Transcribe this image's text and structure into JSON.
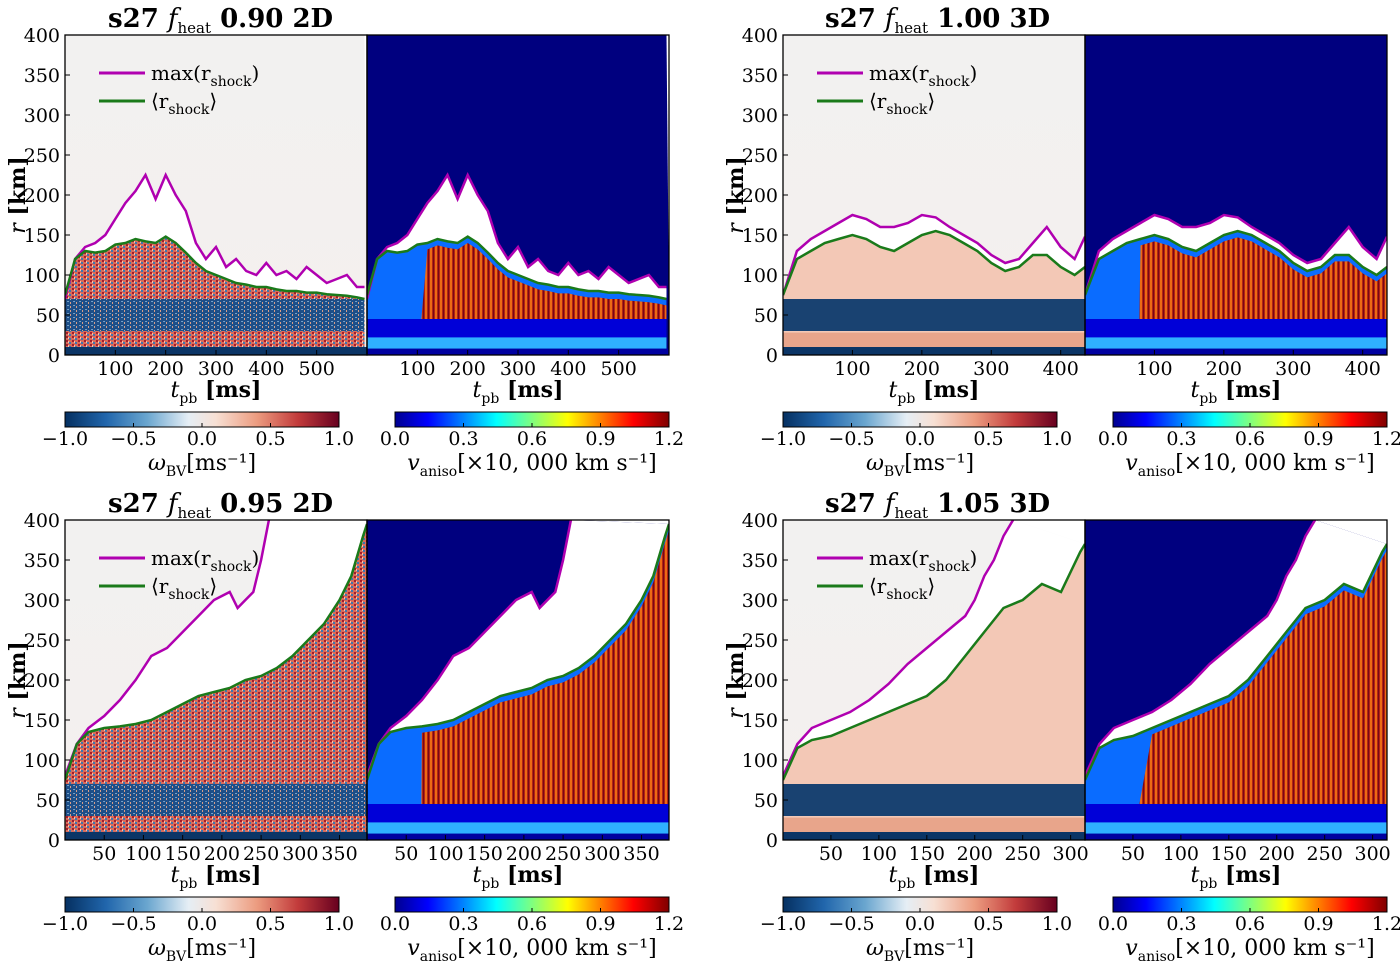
{
  "chart_data": [
    {
      "type": "heatmap",
      "title_prefix": "s27",
      "title_symbol": "f",
      "title_sub": "heat",
      "title_value": "0.90 2D",
      "xlabel_symbol": "t",
      "xlabel_sub": "pb",
      "xlabel_unit": "[ms]",
      "ylabel_symbol": "r",
      "ylabel_unit": "[km]",
      "xlim": [
        0,
        600
      ],
      "ylim": [
        0,
        400
      ],
      "yticks": [
        0,
        50,
        100,
        150,
        200,
        250,
        300,
        350,
        400
      ],
      "xticks": [
        100,
        200,
        300,
        400,
        500
      ],
      "legend": [
        {
          "label": "max(r",
          "sub": "shock",
          "tail": ")",
          "color": "#b000b0"
        },
        {
          "label": "⟨r",
          "sub": "shock",
          "tail": "⟩",
          "color": "#1a7a1a"
        }
      ],
      "series": [
        {
          "name": "max_r_shock",
          "color": "#b000b0",
          "x": [
            0,
            20,
            40,
            60,
            80,
            100,
            120,
            140,
            160,
            180,
            200,
            220,
            240,
            260,
            280,
            300,
            320,
            340,
            360,
            380,
            400,
            420,
            440,
            460,
            480,
            500,
            520,
            540,
            560,
            580,
            595
          ],
          "y": [
            70,
            120,
            135,
            140,
            150,
            170,
            190,
            205,
            225,
            195,
            225,
            200,
            180,
            140,
            120,
            135,
            110,
            120,
            105,
            100,
            115,
            100,
            105,
            95,
            110,
            100,
            90,
            95,
            100,
            85,
            85
          ]
        },
        {
          "name": "mean_r_shock",
          "color": "#1a7a1a",
          "x": [
            0,
            20,
            40,
            60,
            80,
            100,
            120,
            140,
            160,
            180,
            200,
            220,
            240,
            260,
            280,
            300,
            320,
            340,
            360,
            380,
            400,
            420,
            440,
            460,
            480,
            500,
            520,
            540,
            560,
            580,
            595
          ],
          "y": [
            75,
            120,
            130,
            128,
            130,
            138,
            140,
            145,
            142,
            140,
            148,
            140,
            128,
            115,
            105,
            100,
            95,
            90,
            88,
            85,
            85,
            82,
            80,
            80,
            78,
            78,
            76,
            75,
            74,
            72,
            70
          ]
        }
      ],
      "colorbars": [
        {
          "label_symbol": "ω",
          "label_sub": "BV",
          "label_unit": "[ms⁻¹]",
          "ticks": [
            "−1.0",
            "−0.5",
            "0.0",
            "0.5",
            "1.0"
          ],
          "range": [
            -1.0,
            1.0
          ]
        },
        {
          "label_symbol": "v",
          "label_sub": "aniso",
          "label_unit": "[×10, 000 km s⁻¹]",
          "ticks": [
            "0.0",
            "0.3",
            "0.6",
            "0.9",
            "1.2"
          ],
          "range": [
            0.0,
            1.2
          ]
        }
      ]
    },
    {
      "type": "heatmap",
      "title_prefix": "s27",
      "title_symbol": "f",
      "title_sub": "heat",
      "title_value": "1.00 3D",
      "xlabel_symbol": "t",
      "xlabel_sub": "pb",
      "xlabel_unit": "[ms]",
      "ylabel_symbol": "r",
      "ylabel_unit": "[km]",
      "xlim": [
        0,
        435
      ],
      "ylim": [
        0,
        400
      ],
      "yticks": [
        0,
        50,
        100,
        150,
        200,
        250,
        300,
        350,
        400
      ],
      "xticks": [
        100,
        200,
        300,
        400
      ],
      "legend": [
        {
          "label": "max(r",
          "sub": "shock",
          "tail": ")",
          "color": "#b000b0"
        },
        {
          "label": "⟨r",
          "sub": "shock",
          "tail": "⟩",
          "color": "#1a7a1a"
        }
      ],
      "series": [
        {
          "name": "max_r_shock",
          "color": "#b000b0",
          "x": [
            0,
            20,
            40,
            60,
            80,
            100,
            120,
            140,
            160,
            180,
            200,
            220,
            240,
            260,
            280,
            300,
            320,
            340,
            360,
            380,
            400,
            420,
            435
          ],
          "y": [
            75,
            130,
            145,
            155,
            165,
            175,
            170,
            160,
            160,
            165,
            175,
            172,
            160,
            150,
            140,
            125,
            115,
            120,
            140,
            160,
            135,
            120,
            148
          ]
        },
        {
          "name": "mean_r_shock",
          "color": "#1a7a1a",
          "x": [
            0,
            20,
            40,
            60,
            80,
            100,
            120,
            140,
            160,
            180,
            200,
            220,
            240,
            260,
            280,
            300,
            320,
            340,
            360,
            380,
            400,
            420,
            435
          ],
          "y": [
            75,
            120,
            130,
            140,
            145,
            150,
            145,
            135,
            130,
            140,
            150,
            155,
            150,
            140,
            130,
            115,
            105,
            110,
            125,
            125,
            110,
            100,
            110
          ]
        }
      ],
      "colorbars": [
        {
          "label_symbol": "ω",
          "label_sub": "BV",
          "label_unit": "[ms⁻¹]",
          "ticks": [
            "−1.0",
            "−0.5",
            "0.0",
            "0.5",
            "1.0"
          ],
          "range": [
            -1.0,
            1.0
          ]
        },
        {
          "label_symbol": "v",
          "label_sub": "aniso",
          "label_unit": "[×10, 000 km s⁻¹]",
          "ticks": [
            "0.0",
            "0.3",
            "0.6",
            "0.9",
            "1.2"
          ],
          "range": [
            0.0,
            1.2
          ]
        }
      ]
    },
    {
      "type": "heatmap",
      "title_prefix": "s27",
      "title_symbol": "f",
      "title_sub": "heat",
      "title_value": "0.95 2D",
      "xlabel_symbol": "t",
      "xlabel_sub": "pb",
      "xlabel_unit": "[ms]",
      "ylabel_symbol": "r",
      "ylabel_unit": "[km]",
      "xlim": [
        0,
        385
      ],
      "ylim": [
        0,
        400
      ],
      "yticks": [
        0,
        50,
        100,
        150,
        200,
        250,
        300,
        350,
        400
      ],
      "xticks": [
        50,
        100,
        150,
        200,
        250,
        300,
        350
      ],
      "legend": [
        {
          "label": "max(r",
          "sub": "shock",
          "tail": ")",
          "color": "#b000b0"
        },
        {
          "label": "⟨r",
          "sub": "shock",
          "tail": "⟩",
          "color": "#1a7a1a"
        }
      ],
      "series": [
        {
          "name": "max_r_shock",
          "color": "#b000b0",
          "x": [
            0,
            15,
            30,
            50,
            70,
            90,
            110,
            130,
            150,
            170,
            190,
            210,
            220,
            230,
            240,
            250,
            260
          ],
          "y": [
            80,
            120,
            140,
            155,
            175,
            200,
            230,
            240,
            260,
            280,
            300,
            310,
            290,
            300,
            310,
            350,
            400
          ]
        },
        {
          "name": "mean_r_shock",
          "color": "#1a7a1a",
          "x": [
            0,
            15,
            30,
            50,
            70,
            90,
            110,
            130,
            150,
            170,
            190,
            210,
            230,
            250,
            270,
            290,
            310,
            330,
            350,
            365,
            380,
            385
          ],
          "y": [
            75,
            120,
            135,
            140,
            142,
            145,
            150,
            160,
            170,
            180,
            185,
            190,
            200,
            205,
            215,
            230,
            250,
            270,
            300,
            330,
            380,
            395
          ]
        }
      ],
      "colorbars": [
        {
          "label_symbol": "ω",
          "label_sub": "BV",
          "label_unit": "[ms⁻¹]",
          "ticks": [
            "−1.0",
            "−0.5",
            "0.0",
            "0.5",
            "1.0"
          ],
          "range": [
            -1.0,
            1.0
          ]
        },
        {
          "label_symbol": "v",
          "label_sub": "aniso",
          "label_unit": "[×10, 000 km s⁻¹]",
          "ticks": [
            "0.0",
            "0.3",
            "0.6",
            "0.9",
            "1.2"
          ],
          "range": [
            0.0,
            1.2
          ]
        }
      ]
    },
    {
      "type": "heatmap",
      "title_prefix": "s27",
      "title_symbol": "f",
      "title_sub": "heat",
      "title_value": "1.05 3D",
      "xlabel_symbol": "t",
      "xlabel_sub": "pb",
      "xlabel_unit": "[ms]",
      "ylabel_symbol": "r",
      "ylabel_unit": "[km]",
      "xlim": [
        0,
        315
      ],
      "ylim": [
        0,
        400
      ],
      "yticks": [
        0,
        50,
        100,
        150,
        200,
        250,
        300,
        350,
        400
      ],
      "xticks": [
        50,
        100,
        150,
        200,
        250,
        300
      ],
      "legend": [
        {
          "label": "max(r",
          "sub": "shock",
          "tail": ")",
          "color": "#b000b0"
        },
        {
          "label": "⟨r",
          "sub": "shock",
          "tail": "⟩",
          "color": "#1a7a1a"
        }
      ],
      "series": [
        {
          "name": "max_r_shock",
          "color": "#b000b0",
          "x": [
            0,
            15,
            30,
            50,
            70,
            90,
            110,
            130,
            150,
            170,
            190,
            200,
            210,
            220,
            230,
            240
          ],
          "y": [
            80,
            120,
            140,
            150,
            160,
            175,
            195,
            220,
            240,
            260,
            280,
            300,
            330,
            350,
            380,
            400
          ]
        },
        {
          "name": "mean_r_shock",
          "color": "#1a7a1a",
          "x": [
            0,
            15,
            30,
            50,
            70,
            90,
            110,
            130,
            150,
            170,
            190,
            210,
            230,
            250,
            270,
            290,
            310,
            315
          ],
          "y": [
            75,
            115,
            125,
            130,
            140,
            150,
            160,
            170,
            180,
            200,
            230,
            260,
            290,
            300,
            320,
            310,
            360,
            370
          ]
        }
      ],
      "colorbars": [
        {
          "label_symbol": "ω",
          "label_sub": "BV",
          "label_unit": "[ms⁻¹]",
          "ticks": [
            "−1.0",
            "−0.5",
            "0.0",
            "0.5",
            "1.0"
          ],
          "range": [
            -1.0,
            1.0
          ]
        },
        {
          "label_symbol": "v",
          "label_sub": "aniso",
          "label_unit": "[×10, 000 km s⁻¹]",
          "ticks": [
            "0.0",
            "0.3",
            "0.6",
            "0.9",
            "1.2"
          ],
          "range": [
            0.0,
            1.2
          ]
        }
      ]
    }
  ]
}
